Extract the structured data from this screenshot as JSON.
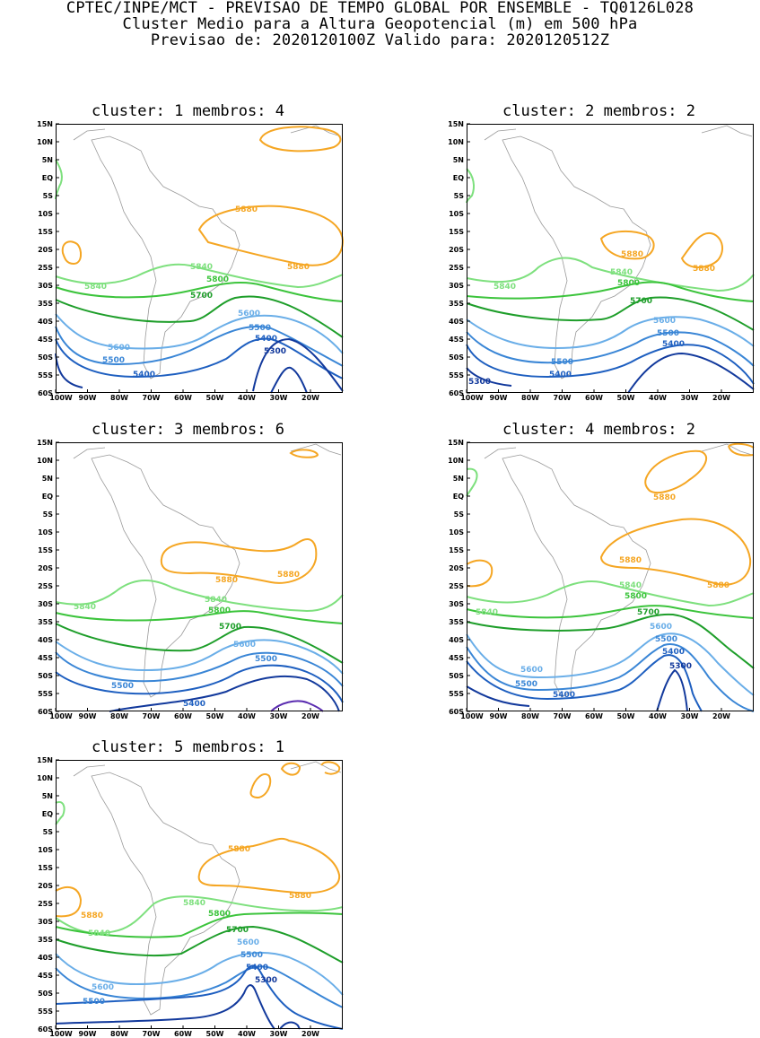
{
  "header": {
    "line1": "CPTEC/INPE/MCT - PREVISAO DE TEMPO GLOBAL POR ENSEMBLE - TQ0126L028",
    "line2": "Cluster Medio para a Altura Geopotencial (m) em 500 hPa",
    "line3": "Previsao de: 2020120100Z    Valido para: 2020120512Z"
  },
  "axes": {
    "lat_labels": [
      "15N",
      "10N",
      "5N",
      "EQ",
      "5S",
      "10S",
      "15S",
      "20S",
      "25S",
      "30S",
      "35S",
      "40S",
      "45S",
      "50S",
      "55S",
      "60S"
    ],
    "lon_labels": [
      "100W",
      "90W",
      "80W",
      "70W",
      "60W",
      "50W",
      "40W",
      "30W",
      "20W"
    ]
  },
  "colors": {
    "c5880": "#f5a623",
    "c5840": "#7ee07e",
    "c5800": "#3cc43c",
    "c5700": "#1e9e2a",
    "c5600": "#6aaee8",
    "c5500": "#3a86d6",
    "c5400": "#1e5fc0",
    "c5300": "#12399c",
    "c5200": "#5a2cb0",
    "coast": "#9a9a9a"
  },
  "panels": [
    {
      "title": "cluster: 1   membros: 4",
      "labels": {
        "l5880a": "5880",
        "l5880b": "5880",
        "l5840a": "5840",
        "l5840b": "5840",
        "l5800": "5800",
        "l5700": "5700",
        "l5600a": "5600",
        "l5600b": "5600",
        "l5500a": "5500",
        "l5500b": "5500",
        "l5400a": "5400",
        "l5400b": "5400",
        "l5300": "5300"
      }
    },
    {
      "title": "cluster: 2   membros: 2",
      "labels": {
        "l5880a": "5880",
        "l5880b": "5880",
        "l5840a": "5840",
        "l5840b": "5840",
        "l5800": "5800",
        "l5700": "5700",
        "l5600a": "5600",
        "l5500a": "5500",
        "l5500b": "5500",
        "l5400a": "5400",
        "l5400b": "5400",
        "l5300": "5300"
      }
    },
    {
      "title": "cluster: 3   membros: 6",
      "labels": {
        "l5880a": "5880",
        "l5880b": "5880",
        "l5840a": "5840",
        "l5840b": "5840",
        "l5800": "5800",
        "l5700": "5700",
        "l5600a": "5600",
        "l5500a": "5500",
        "l5500b": "5500",
        "l5400a": "5400"
      }
    },
    {
      "title": "cluster: 4   membros: 2",
      "labels": {
        "l5880a": "5880",
        "l5880b": "5880",
        "l5880c": "5880",
        "l5840a": "5840",
        "l5840b": "5840",
        "l5800": "5800",
        "l5700": "5700",
        "l5600a": "5600",
        "l5600b": "5600",
        "l5500a": "5500",
        "l5500b": "5500",
        "l5400a": "5400",
        "l5400b": "5400",
        "l5300": "5300"
      }
    },
    {
      "title": "cluster: 5   membros: 1",
      "labels": {
        "l5880a": "5880",
        "l5880b": "5880",
        "l5880c": "5880",
        "l5840a": "5840",
        "l5840b": "5840",
        "l5800": "5800",
        "l5700": "5700",
        "l5600a": "5600",
        "l5600b": "5600",
        "l5500a": "5500",
        "l5500b": "5500",
        "l5400a": "5400",
        "l5300": "5300"
      }
    }
  ]
}
